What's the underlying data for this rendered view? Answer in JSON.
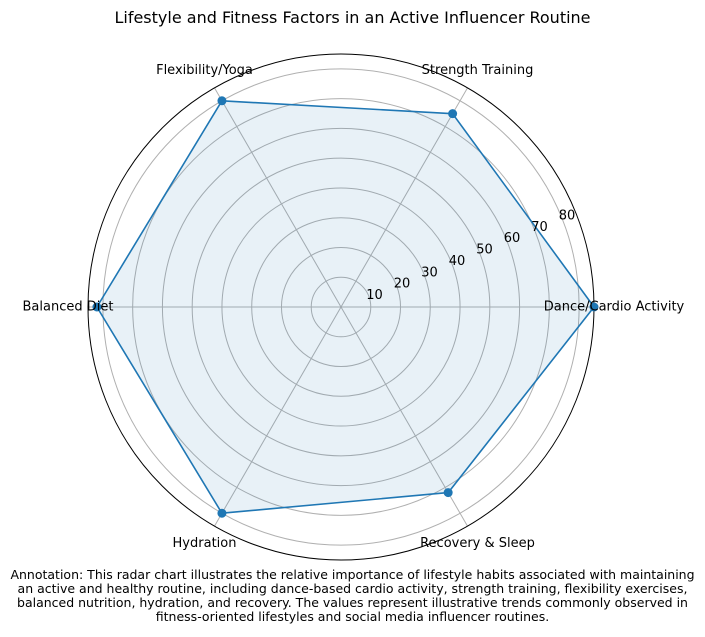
{
  "chart_data": {
    "type": "radar",
    "title": "Lifestyle and Fitness Factors in an Active Influencer Routine",
    "categories": [
      "Dance/Cardio Activity",
      "Strength Training",
      "Flexibility/Yoga",
      "Balanced Diet",
      "Hydration",
      "Recovery & Sleep"
    ],
    "series": [
      {
        "values": [
          85,
          75,
          80,
          82,
          80,
          72
        ]
      }
    ],
    "rlim": [
      0,
      85
    ],
    "radial_ticks": [
      10,
      20,
      30,
      40,
      50,
      60,
      70,
      80
    ],
    "grid": true,
    "colors": {
      "line": "#1f77b4",
      "fill": "#1f77b4",
      "grid": "#b0b0b0",
      "frame": "#000000"
    }
  },
  "annotation": [
    "Annotation: This radar chart illustrates the relative importance of lifestyle habits associated with maintaining",
    "an active and healthy routine, including dance-based cardio activity, strength training, flexibility exercises,",
    "balanced nutrition, hydration, and recovery. The values represent illustrative trends commonly observed in",
    "fitness-oriented lifestyles and social media influencer routines."
  ]
}
